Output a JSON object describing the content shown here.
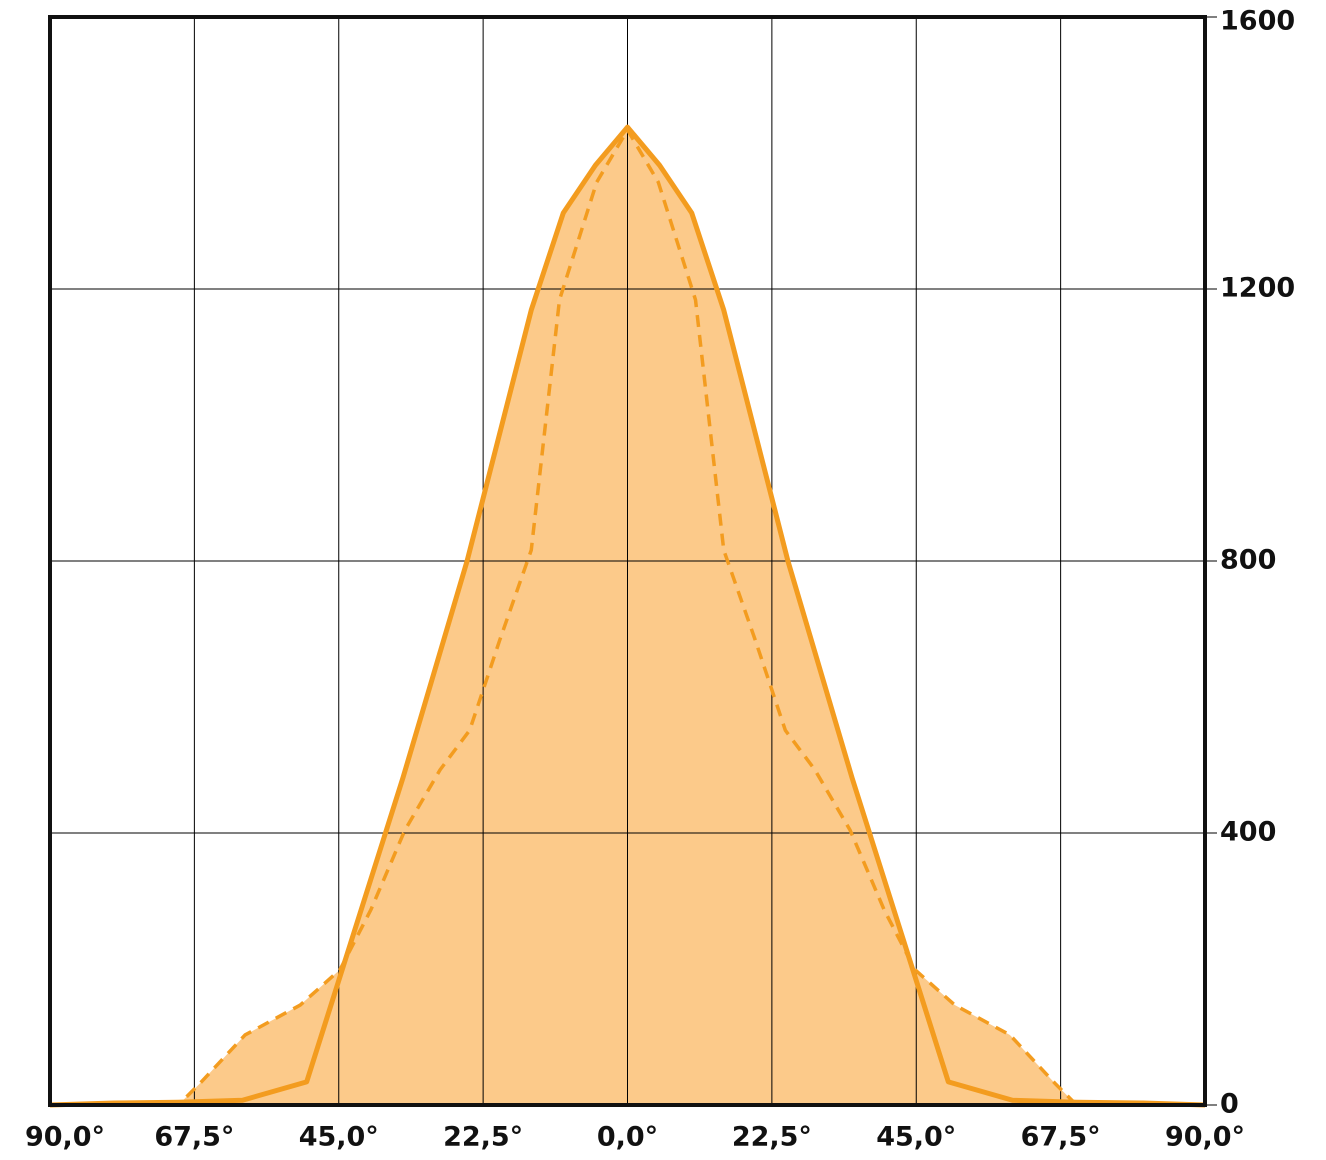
{
  "chart_data": {
    "type": "area",
    "xlim": [
      -90,
      90
    ],
    "ylim": [
      0,
      1600
    ],
    "xticks": [
      {
        "value": -90,
        "label": "90,0°"
      },
      {
        "value": -67.5,
        "label": "67,5°"
      },
      {
        "value": -45,
        "label": "45,0°"
      },
      {
        "value": -22.5,
        "label": "22,5°"
      },
      {
        "value": 0,
        "label": "0,0°"
      },
      {
        "value": 22.5,
        "label": "22,5°"
      },
      {
        "value": 45,
        "label": "45,0°"
      },
      {
        "value": 67.5,
        "label": "67,5°"
      },
      {
        "value": 90,
        "label": "90,0°"
      }
    ],
    "yticks": [
      0,
      400,
      800,
      1200,
      1600
    ],
    "grid": true,
    "y_axis_side": "right",
    "series": [
      {
        "style": "dashed",
        "color": "#f39c1f",
        "fill": "#fcca8a",
        "x": [
          -90,
          -70,
          -66.6,
          -59.6,
          -51,
          -44.8,
          -40,
          -34.7,
          -29.2,
          -24.6,
          -19.9,
          -15,
          -10.6,
          -4.8,
          0,
          4.8,
          10.6,
          15,
          19.9,
          24.6,
          29.2,
          34.7,
          40,
          44.8,
          51,
          59.6,
          66.6,
          70,
          90
        ],
        "values": [
          0,
          0,
          32,
          103,
          147,
          199,
          287,
          404,
          493,
          551,
          684,
          816,
          1184,
          1357,
          1434,
          1357,
          1184,
          816,
          684,
          551,
          493,
          404,
          287,
          199,
          147,
          103,
          32,
          0,
          0
        ]
      },
      {
        "style": "solid",
        "color": "#f39c1f",
        "fill": "#fcca8a",
        "x": [
          -90,
          -80,
          -70,
          -60,
          -50,
          -35,
          -25,
          -15,
          -10,
          -5,
          0,
          5,
          10,
          15,
          25,
          35,
          50,
          60,
          70,
          80,
          90
        ],
        "values": [
          0,
          3,
          4,
          7,
          34,
          481,
          800,
          1169,
          1312,
          1382,
          1438,
          1382,
          1312,
          1169,
          800,
          481,
          34,
          7,
          4,
          3,
          0
        ]
      }
    ]
  }
}
